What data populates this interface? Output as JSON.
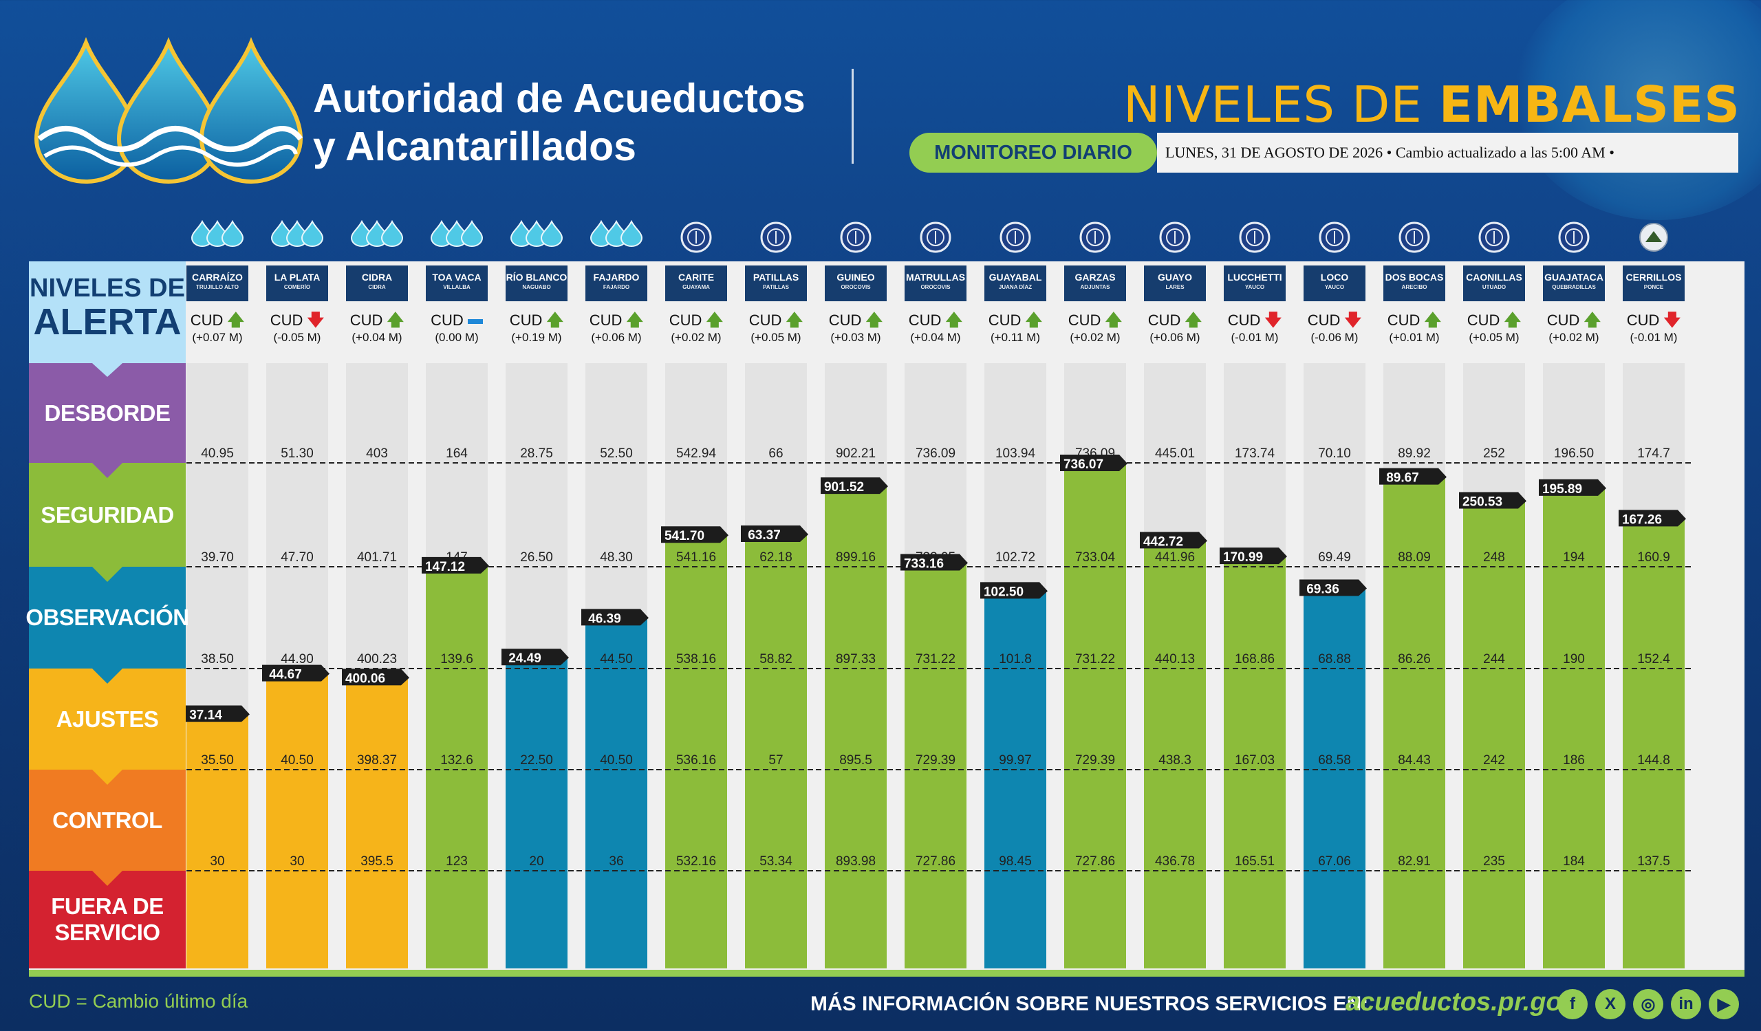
{
  "org": {
    "line1": "Autoridad de Acueductos",
    "line2": "y Alcantarillados"
  },
  "header": {
    "title_a": "NIVELES DE ",
    "title_b": "EMBALSES",
    "monitor_label": "MONITOREO DIARIO",
    "date_text": "LUNES, 31 DE AGOSTO DE 2026 • Cambio actualizado a las 5:00 AM •"
  },
  "alert_panel": {
    "line1": "NIVELES DE",
    "line2": "ALERTA"
  },
  "levels": [
    {
      "name": "DESBORDE",
      "color": "#8b5ba8"
    },
    {
      "name": "SEGURIDAD",
      "color": "#8cbc3a"
    },
    {
      "name": "OBSERVACIÓN",
      "color": "#0e86b0"
    },
    {
      "name": "AJUSTES",
      "color": "#f6b41a"
    },
    {
      "name": "CONTROL",
      "color": "#f07b22"
    },
    {
      "name": "FUERA DE SERVICIO",
      "color": "#d42230"
    }
  ],
  "colors": {
    "ajustes": "#f6b41a",
    "observacion": "#0e86b0",
    "seguridad": "#8cbc3a",
    "header": "#163d6e",
    "accent_green": "#93cd52",
    "title_gold": "#f7b614"
  },
  "chart_data": {
    "type": "bar",
    "title": "NIVELES DE EMBALSES",
    "series_fields": [
      "desborde",
      "seguridad",
      "observacion",
      "ajustes",
      "control",
      "level"
    ],
    "reservoirs": [
      {
        "name": "CARRAÍZO",
        "muni": "TRUJILLO ALTO",
        "cud": "(+0.07 M)",
        "trend": "up",
        "thresholds": [
          "40.95",
          "39.70",
          "38.50",
          "35.50",
          "30"
        ],
        "level": "37.14",
        "status": "ajustes",
        "icon": "aaa"
      },
      {
        "name": "LA PLATA",
        "muni": "COMERÍO",
        "cud": "(-0.05 M)",
        "trend": "down",
        "thresholds": [
          "51.30",
          "47.70",
          "44.90",
          "40.50",
          "30"
        ],
        "level": "44.67",
        "status": "ajustes",
        "icon": "aaa"
      },
      {
        "name": "CIDRA",
        "muni": "CIDRA",
        "cud": "(+0.04 M)",
        "trend": "up",
        "thresholds": [
          "403",
          "401.71",
          "400.23",
          "398.37",
          "395.5"
        ],
        "level": "400.06",
        "status": "ajustes",
        "icon": "aaa"
      },
      {
        "name": "TOA VACA",
        "muni": "VILLALBA",
        "cud": "(0.00 M)",
        "trend": "flat",
        "thresholds": [
          "164",
          "147",
          "139.6",
          "132.6",
          "123"
        ],
        "level": "147.12",
        "status": "seguridad",
        "icon": "aaa"
      },
      {
        "name": "RÍO BLANCO",
        "muni": "NAGUABO",
        "cud": "(+0.19 M)",
        "trend": "up",
        "thresholds": [
          "28.75",
          "26.50",
          "24.25",
          "22.50",
          "20"
        ],
        "level": "24.49",
        "status": "observacion",
        "icon": "aaa"
      },
      {
        "name": "FAJARDO",
        "muni": "FAJARDO",
        "cud": "(+0.06 M)",
        "trend": "up",
        "thresholds": [
          "52.50",
          "48.30",
          "44.50",
          "40.50",
          "36"
        ],
        "level": "46.39",
        "status": "observacion",
        "icon": "aaa"
      },
      {
        "name": "CARITE",
        "muni": "GUAYAMA",
        "cud": "(+0.02 M)",
        "trend": "up",
        "thresholds": [
          "542.94",
          "541.16",
          "538.16",
          "536.16",
          "532.16"
        ],
        "level": "541.70",
        "status": "seguridad",
        "icon": "aee"
      },
      {
        "name": "PATILLAS",
        "muni": "PATILLAS",
        "cud": "(+0.05 M)",
        "trend": "up",
        "thresholds": [
          "66",
          "62.18",
          "58.82",
          "57",
          "53.34"
        ],
        "level": "63.37",
        "status": "seguridad",
        "icon": "aee"
      },
      {
        "name": "GUINEO",
        "muni": "OROCOVIS",
        "cud": "(+0.03 M)",
        "trend": "up",
        "thresholds": [
          "902.21",
          "899.16",
          "897.33",
          "895.5",
          "893.98"
        ],
        "level": "901.52",
        "status": "seguridad",
        "icon": "aee"
      },
      {
        "name": "MATRULLAS",
        "muni": "OROCOVIS",
        "cud": "(+0.04 M)",
        "trend": "up",
        "thresholds": [
          "736.09",
          "733.05",
          "731.22",
          "729.39",
          "727.86"
        ],
        "level": "733.16",
        "status": "seguridad",
        "icon": "aee"
      },
      {
        "name": "GUAYABAL",
        "muni": "JUANA DÍAZ",
        "cud": "(+0.11 M)",
        "trend": "up",
        "thresholds": [
          "103.94",
          "102.72",
          "101.8",
          "99.97",
          "98.45"
        ],
        "level": "102.50",
        "status": "observacion",
        "icon": "aee"
      },
      {
        "name": "GARZAS",
        "muni": "ADJUNTAS",
        "cud": "(+0.02 M)",
        "trend": "up",
        "thresholds": [
          "736.09",
          "733.04",
          "731.22",
          "729.39",
          "727.86"
        ],
        "level": "736.07",
        "status": "seguridad",
        "icon": "aee"
      },
      {
        "name": "GUAYO",
        "muni": "LARES",
        "cud": "(+0.06 M)",
        "trend": "up",
        "thresholds": [
          "445.01",
          "441.96",
          "440.13",
          "438.3",
          "436.78"
        ],
        "level": "442.72",
        "status": "seguridad",
        "icon": "aee"
      },
      {
        "name": "LUCCHETTI",
        "muni": "YAUCO",
        "cud": "(-0.01 M)",
        "trend": "down",
        "thresholds": [
          "173.74",
          "170.69",
          "168.86",
          "167.03",
          "165.51"
        ],
        "level": "170.99",
        "status": "seguridad",
        "icon": "aee"
      },
      {
        "name": "LOCO",
        "muni": "YAUCO",
        "cud": "(-0.06 M)",
        "trend": "down",
        "thresholds": [
          "70.10",
          "69.49",
          "68.88",
          "68.58",
          "67.06"
        ],
        "level": "69.36",
        "status": "observacion",
        "icon": "aee"
      },
      {
        "name": "DOS BOCAS",
        "muni": "ARECIBO",
        "cud": "(+0.01 M)",
        "trend": "up",
        "thresholds": [
          "89.92",
          "88.09",
          "86.26",
          "84.43",
          "82.91"
        ],
        "level": "89.67",
        "status": "seguridad",
        "icon": "aee"
      },
      {
        "name": "CAONILLAS",
        "muni": "UTUADO",
        "cud": "(+0.05 M)",
        "trend": "up",
        "thresholds": [
          "252",
          "248",
          "244",
          "242",
          "235"
        ],
        "level": "250.53",
        "status": "seguridad",
        "icon": "aee"
      },
      {
        "name": "GUAJATACA",
        "muni": "QUEBRADILLAS",
        "cud": "(+0.02 M)",
        "trend": "up",
        "thresholds": [
          "196.50",
          "194",
          "190",
          "186",
          "184"
        ],
        "level": "195.89",
        "status": "seguridad",
        "icon": "aee"
      },
      {
        "name": "CERRILLOS",
        "muni": "PONCE",
        "cud": "(-0.01 M)",
        "trend": "down",
        "thresholds": [
          "174.7",
          "160.9",
          "152.4",
          "144.8",
          "137.5"
        ],
        "level": "167.26",
        "status": "seguridad",
        "icon": "usace"
      }
    ]
  },
  "footer": {
    "cud_note": "CUD = Cambio último día",
    "info": "MÁS INFORMACIÓN SOBRE NUESTROS SERVICIOS EN:",
    "url": "acueductos.pr.gov",
    "social": [
      "f",
      "X",
      "◎",
      "in",
      "▶"
    ]
  }
}
